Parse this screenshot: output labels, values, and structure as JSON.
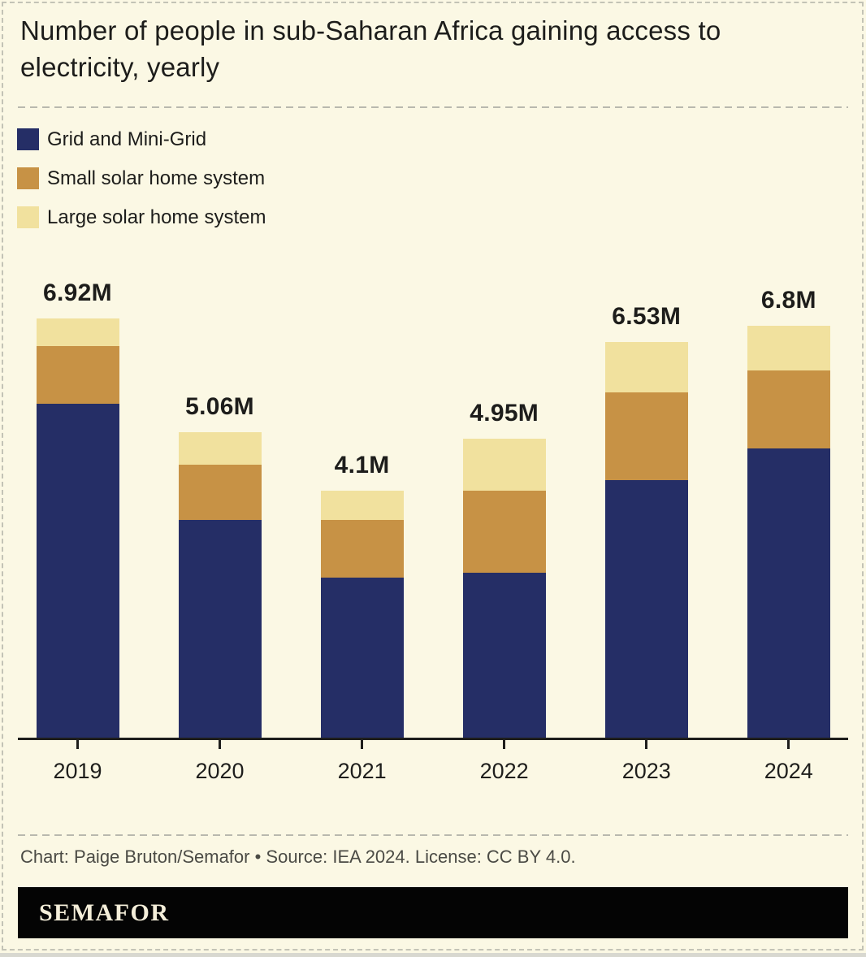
{
  "title": "Number of people in sub-Saharan Africa gaining access to electricity, yearly",
  "legend": {
    "items": [
      {
        "label": "Grid and Mini-Grid",
        "color": "#252e66"
      },
      {
        "label": "Small solar home system",
        "color": "#c79245"
      },
      {
        "label": "Large solar home system",
        "color": "#f1e19e"
      }
    ]
  },
  "chart_data": {
    "type": "bar",
    "stacked": true,
    "title": "Number of people in sub-Saharan Africa gaining access to electricity, yearly",
    "categories": [
      "2019",
      "2020",
      "2021",
      "2022",
      "2023",
      "2024"
    ],
    "series": [
      {
        "name": "Grid and Mini-Grid",
        "color": "#252e66",
        "values": [
          5.52,
          3.62,
          2.67,
          2.75,
          4.27,
          4.79
        ]
      },
      {
        "name": "Small solar home system",
        "color": "#c79245",
        "values": [
          0.95,
          0.9,
          0.94,
          1.35,
          1.44,
          1.28
        ]
      },
      {
        "name": "Large solar home system",
        "color": "#f1e19e",
        "values": [
          0.45,
          0.54,
          0.49,
          0.85,
          0.82,
          0.73
        ]
      }
    ],
    "totals": [
      6.92,
      5.06,
      4.1,
      4.95,
      6.53,
      6.8
    ],
    "totals_labels": [
      "6.92M",
      "5.06M",
      "4.1M",
      "4.95M",
      "6.53M",
      "6.8M"
    ],
    "unit": "millions of people",
    "xlabel": "",
    "ylabel": "",
    "y_axis_visible": false,
    "grid": false,
    "legend_position": "top-left"
  },
  "footer": {
    "credit": "Chart: Paige Bruton/Semafor • Source: IEA 2024. License: CC BY 4.0.",
    "logo_text": "SEMAFOR"
  },
  "colors": {
    "background": "#fbf8e4",
    "text": "#1d1d1b",
    "axis": "#1e1e1c",
    "credit_text": "#4b4b45",
    "dashed_lines": "#b9b9ae",
    "logo_background": "#040404",
    "logo_text": "#f4eed9"
  }
}
